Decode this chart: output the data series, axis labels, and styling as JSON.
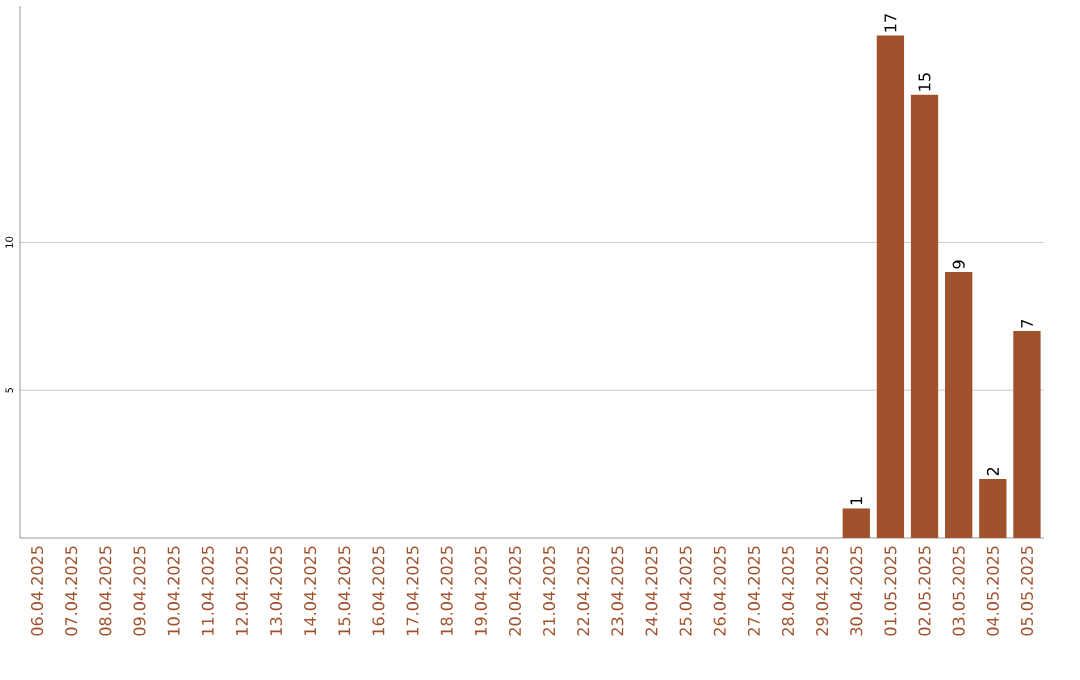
{
  "chart_data": {
    "type": "bar",
    "categories": [
      "06.04.2025",
      "07.04.2025",
      "08.04.2025",
      "09.04.2025",
      "10.04.2025",
      "11.04.2025",
      "12.04.2025",
      "13.04.2025",
      "14.04.2025",
      "15.04.2025",
      "16.04.2025",
      "17.04.2025",
      "18.04.2025",
      "19.04.2025",
      "20.04.2025",
      "21.04.2025",
      "22.04.2025",
      "23.04.2025",
      "24.04.2025",
      "25.04.2025",
      "26.04.2025",
      "27.04.2025",
      "28.04.2025",
      "29.04.2025",
      "30.04.2025",
      "01.05.2025",
      "02.05.2025",
      "03.05.2025",
      "04.05.2025",
      "05.05.2025"
    ],
    "values": [
      0,
      0,
      0,
      0,
      0,
      0,
      0,
      0,
      0,
      0,
      0,
      0,
      0,
      0,
      0,
      0,
      0,
      0,
      0,
      0,
      0,
      0,
      0,
      0,
      1,
      17,
      15,
      9,
      2,
      7
    ],
    "value_labels": [
      null,
      null,
      null,
      null,
      null,
      null,
      null,
      null,
      null,
      null,
      null,
      null,
      null,
      null,
      null,
      null,
      null,
      null,
      null,
      null,
      null,
      null,
      null,
      null,
      "1",
      "17",
      "15",
      "9",
      "2",
      "7"
    ],
    "color": "#a0522d",
    "ylim": [
      0,
      18
    ],
    "yticks": [
      5,
      10
    ],
    "grid": "y"
  }
}
